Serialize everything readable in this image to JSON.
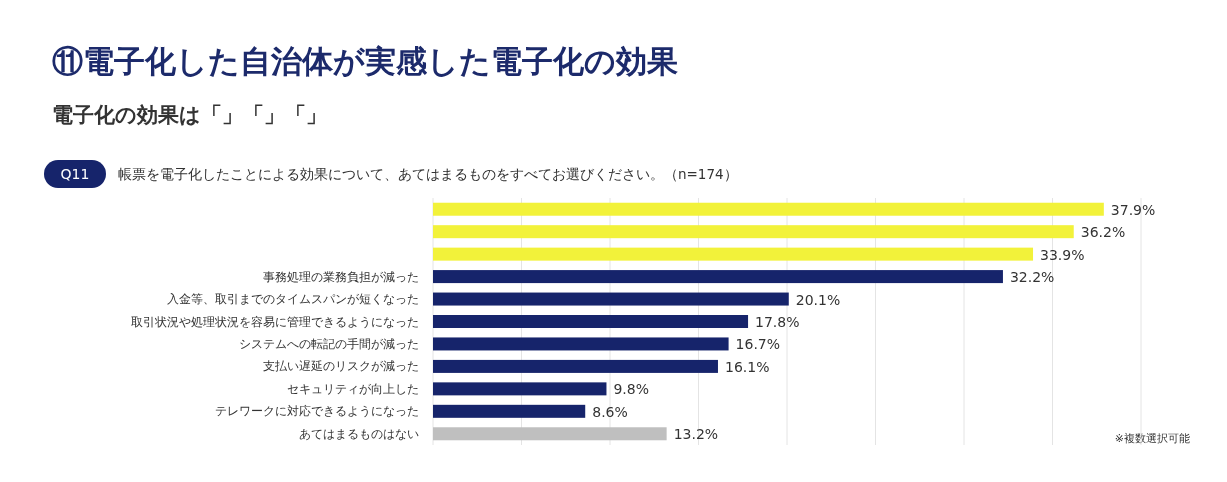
{
  "chart_data": {
    "type": "bar",
    "orientation": "horizontal",
    "title": "⑪電子化した自治体が実感した電子化の効果",
    "subtitle": "電子化の効果は「」「」「」",
    "categories": [
      null,
      null,
      null,
      "事務処理の業務負担が減った",
      "入金等、取引までのタイムスパンが短くなった",
      "取引状況や処理状況を容易に管理できるようになった",
      "システムへの転記の手間が減った",
      "支払い遅延のリスクが減った",
      "セキュリティが向上した",
      "テレワークに対応できるようになった",
      "あてはまるものはない"
    ],
    "values": [
      37.9,
      36.2,
      33.9,
      32.2,
      20.1,
      17.8,
      16.7,
      16.1,
      9.8,
      8.6,
      13.2
    ],
    "colors": [
      "#f2f23a",
      "#f2f23a",
      "#f2f23a",
      "#16246b",
      "#16246b",
      "#16246b",
      "#16246b",
      "#16246b",
      "#16246b",
      "#16246b",
      "#bfbfbf"
    ],
    "value_labels": [
      "37.9%",
      "36.2%",
      "33.9%",
      "32.2%",
      "20.1%",
      "17.8%",
      "16.7%",
      "16.1%",
      "9.8%",
      "8.6%",
      "13.2%"
    ],
    "xlim": [
      0,
      40
    ],
    "xticks": [
      {
        "value": 0,
        "label": null
      },
      {
        "value": 5,
        "label": null
      },
      {
        "value": 10,
        "label": null
      },
      {
        "value": 15,
        "label": null
      },
      {
        "value": 20,
        "label": null
      },
      {
        "value": 25,
        "label": null
      },
      {
        "value": 30,
        "label": null
      },
      {
        "value": 35,
        "label": null
      },
      {
        "value": 40,
        "label": null
      }
    ],
    "grid": "x",
    "tick_labels": "y",
    "annotations": [
      "Q11",
      "帳票を電子化したことによる効果について、あてはまるものをすべてお選びください。（n=174）",
      "※複数選択可能"
    ]
  }
}
